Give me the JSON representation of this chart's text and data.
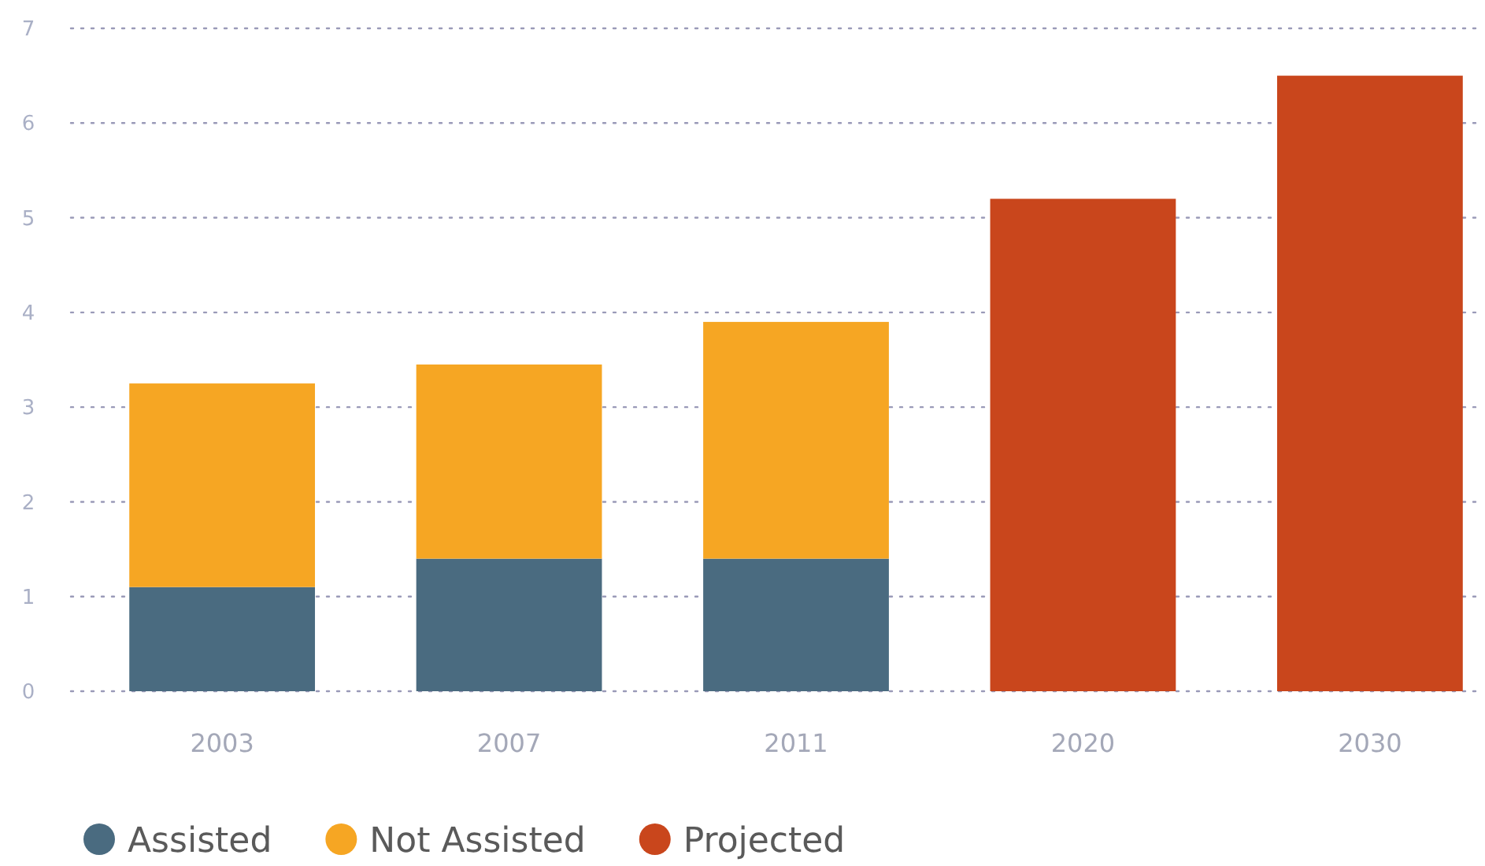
{
  "chart_data": {
    "type": "bar",
    "stacked": true,
    "categories": [
      "2003",
      "2007",
      "2011",
      "2020",
      "2030"
    ],
    "series": [
      {
        "name": "Assisted",
        "color": "#4a6b80",
        "values": [
          1.1,
          1.4,
          1.4,
          null,
          null
        ]
      },
      {
        "name": "Not Assisted",
        "color": "#f6a623",
        "values": [
          2.15,
          2.05,
          2.5,
          null,
          null
        ]
      },
      {
        "name": "Projected",
        "color": "#c9461c",
        "values": [
          null,
          null,
          null,
          5.2,
          6.5
        ]
      }
    ],
    "ylim": [
      0,
      7
    ],
    "yticks": [
      0,
      1,
      2,
      3,
      4,
      5,
      6,
      7
    ],
    "grid": "y",
    "legend": "bottom left"
  }
}
